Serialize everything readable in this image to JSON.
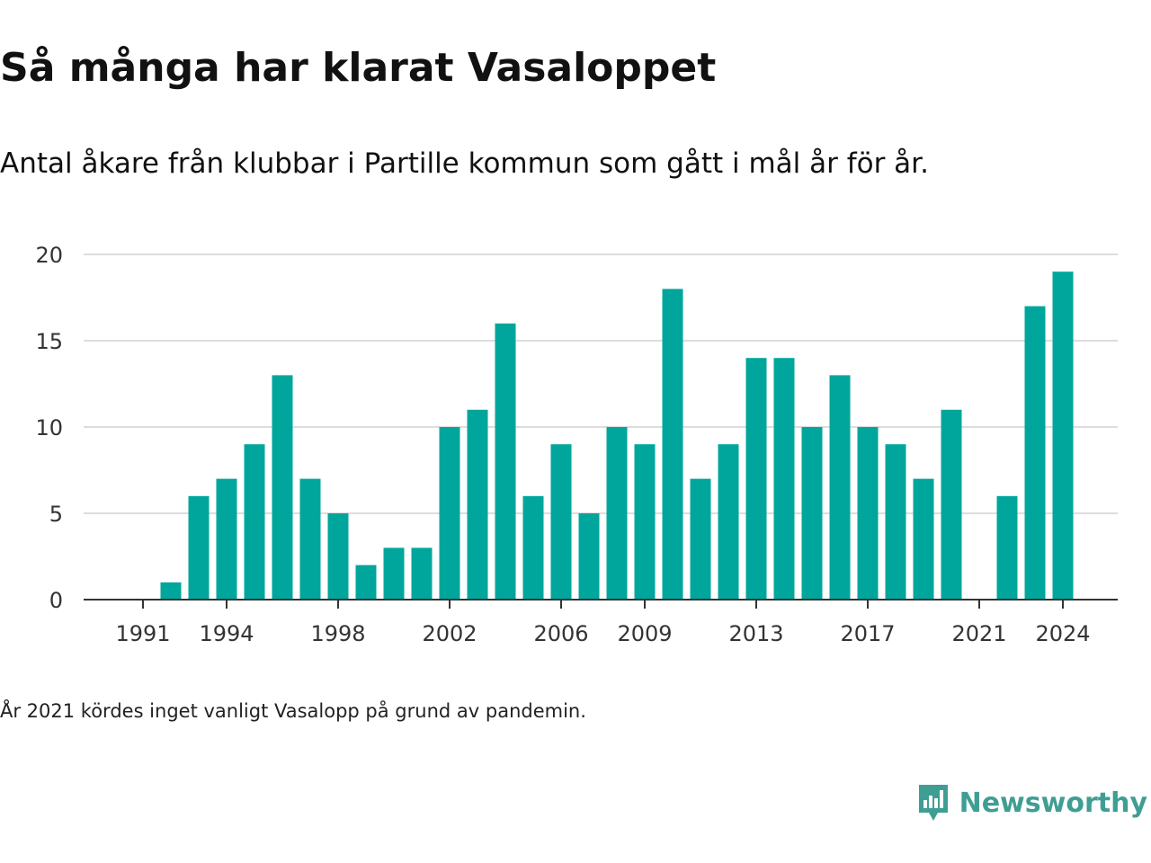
{
  "title": "Så många har klarat Vasaloppet",
  "subtitle": "Antal åkare från klubbar i Partille kommun som gått i mål år för år.",
  "footnote": "År 2021 kördes inget vanligt Vasalopp på grund av pandemin.",
  "brand": {
    "name": "Newsworthy",
    "icon": "newsworthy-logo-icon"
  },
  "colors": {
    "bar": "#00a69c",
    "grid": "#dddddd",
    "axis": "#333333",
    "brand": "#3f9e93"
  },
  "chart_data": {
    "type": "bar",
    "categories": [
      1991,
      1992,
      1993,
      1994,
      1995,
      1996,
      1997,
      1998,
      1999,
      2000,
      2001,
      2002,
      2003,
      2004,
      2005,
      2006,
      2007,
      2008,
      2009,
      2010,
      2011,
      2012,
      2013,
      2014,
      2015,
      2016,
      2017,
      2018,
      2019,
      2020,
      2021,
      2022,
      2023,
      2024
    ],
    "values": [
      0,
      1,
      6,
      7,
      9,
      13,
      7,
      5,
      2,
      3,
      3,
      10,
      11,
      16,
      6,
      9,
      5,
      10,
      9,
      18,
      7,
      9,
      14,
      14,
      10,
      13,
      10,
      9,
      7,
      11,
      0,
      6,
      17,
      19
    ],
    "x_tick_labels": [
      "1991",
      "1994",
      "1998",
      "2002",
      "2006",
      "2009",
      "2013",
      "2017",
      "2021",
      "2024"
    ],
    "y_ticks": [
      0,
      5,
      10,
      15,
      20
    ],
    "ylim": [
      0,
      20
    ],
    "grid": true,
    "legend": "none"
  }
}
